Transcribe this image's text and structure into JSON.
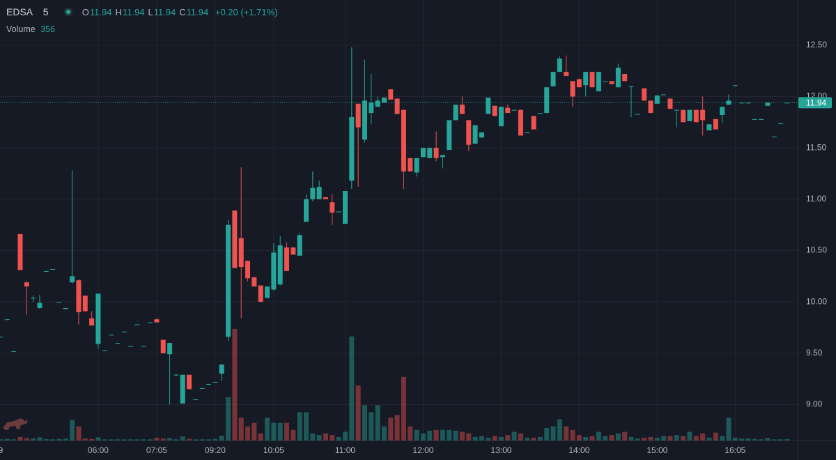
{
  "chart_data": {
    "type": "candlestick",
    "symbol": "EDSA",
    "interval": "5",
    "legend": [
      {
        "label": "O",
        "value": 11.94
      },
      {
        "label": "H",
        "value": 11.94
      },
      {
        "label": "L",
        "value": 11.94
      },
      {
        "label": "C",
        "value": 11.94
      }
    ],
    "change": "+0.20 (+1.71%)",
    "volume_label": "Volume",
    "volume_last": 356,
    "last_price": 11.94,
    "up_color": "#26a69a",
    "down_color": "#ef5350",
    "ylim": [
      8.65,
      12.94
    ],
    "yticks": [
      {
        "value": 9.0,
        "label": "9.00"
      },
      {
        "value": 9.5,
        "label": "9.50"
      },
      {
        "value": 10.0,
        "label": "10.00"
      },
      {
        "value": 10.5,
        "label": "10.50"
      },
      {
        "value": 11.0,
        "label": "11.00"
      },
      {
        "value": 11.5,
        "label": "11.50"
      },
      {
        "value": 12.0,
        "label": "12.00"
      },
      {
        "value": 12.5,
        "label": "12.50"
      }
    ],
    "grid": true,
    "categories": [
      "9",
      null,
      null,
      null,
      null,
      null,
      null,
      null,
      null,
      null,
      null,
      null,
      null,
      null,
      null,
      "06:00",
      null,
      null,
      null,
      null,
      null,
      null,
      null,
      null,
      "07:05",
      null,
      null,
      null,
      null,
      null,
      null,
      null,
      null,
      "09:20",
      null,
      null,
      null,
      null,
      null,
      null,
      null,
      null,
      "10:05",
      null,
      null,
      null,
      null,
      null,
      null,
      null,
      null,
      null,
      null,
      "11:00",
      null,
      null,
      null,
      null,
      null,
      null,
      null,
      null,
      null,
      null,
      null,
      "12:00",
      null,
      null,
      null,
      null,
      null,
      null,
      null,
      null,
      null,
      null,
      null,
      "13:00",
      null,
      null,
      null,
      null,
      null,
      null,
      null,
      null,
      null,
      null,
      null,
      "14:00",
      null,
      null,
      null,
      null,
      null,
      null,
      null,
      null,
      null,
      null,
      null,
      "15:00",
      null,
      null,
      null,
      null,
      null,
      null,
      null,
      null,
      null,
      null,
      null,
      "16:05",
      null,
      null,
      null,
      null,
      null,
      null,
      null,
      null
    ],
    "open": [
      9.66,
      9.83,
      9.52,
      10.66,
      10.19,
      10.04,
      9.94,
      10.3,
      10.32,
      10.0,
      9.93,
      10.19,
      10.21,
      10.06,
      9.84,
      9.59,
      9.53,
      9.68,
      9.6,
      9.71,
      9.57,
      9.78,
      9.57,
      9.8,
      9.83,
      9.63,
      9.49,
      9.29,
      9.01,
      9.29,
      9.05,
      9.16,
      9.2,
      9.22,
      9.3,
      9.66,
      10.89,
      10.62,
      10.4,
      10.24,
      10.16,
      10.04,
      10.12,
      10.17,
      10.53,
      10.53,
      10.45,
      10.78,
      11.0,
      11.0,
      11.02,
      10.97,
      10.88,
      10.76,
      11.18,
      11.93,
      11.58,
      11.84,
      11.9,
      11.94,
      12.07,
      11.98,
      11.87,
      11.4,
      11.26,
      11.41,
      11.4,
      11.5,
      11.41,
      11.48,
      11.77,
      11.92,
      11.77,
      11.54,
      11.6,
      11.83,
      11.91,
      11.71,
      11.89,
      11.87,
      11.87,
      11.65,
      11.81,
      11.84,
      11.84,
      12.1,
      12.24,
      12.24,
      12.15,
      12.17,
      12.11,
      12.24,
      12.05,
      12.15,
      12.15,
      12.09,
      12.22,
      12.1,
      11.83,
      12.08,
      11.96,
      11.93,
      12.02,
      11.98,
      11.87,
      11.87,
      11.76,
      11.87,
      11.87,
      11.67,
      11.78,
      11.82,
      11.92,
      12.11,
      11.94,
      11.94,
      11.78,
      11.78,
      11.91,
      11.61,
      11.74,
      11.94
    ],
    "high": [
      9.66,
      9.83,
      9.52,
      10.66,
      10.2,
      10.06,
      10.07,
      10.3,
      10.32,
      10.0,
      9.94,
      11.28,
      10.22,
      10.06,
      9.91,
      10.08,
      9.53,
      9.68,
      9.6,
      9.71,
      9.57,
      9.78,
      9.57,
      9.8,
      9.84,
      9.63,
      9.6,
      9.3,
      9.29,
      9.29,
      9.05,
      9.16,
      9.2,
      9.22,
      9.39,
      10.8,
      10.89,
      11.31,
      10.4,
      10.24,
      10.16,
      10.15,
      10.57,
      10.64,
      10.58,
      10.53,
      10.67,
      11.05,
      11.27,
      11.18,
      11.02,
      11.05,
      10.88,
      11.08,
      12.48,
      11.93,
      12.36,
      12.22,
      12.0,
      11.99,
      12.07,
      11.98,
      11.87,
      11.4,
      11.4,
      11.5,
      11.5,
      11.66,
      11.43,
      11.77,
      11.92,
      12.0,
      11.77,
      11.72,
      11.65,
      11.99,
      11.91,
      11.9,
      11.92,
      11.87,
      11.87,
      11.65,
      11.81,
      11.84,
      12.09,
      12.24,
      12.39,
      12.4,
      12.15,
      12.17,
      12.24,
      12.24,
      12.24,
      12.15,
      12.15,
      12.32,
      12.22,
      12.1,
      11.83,
      12.08,
      11.96,
      12.01,
      12.02,
      11.98,
      11.87,
      11.87,
      11.87,
      11.87,
      12.0,
      11.73,
      11.78,
      11.9,
      12.02,
      12.11,
      11.94,
      11.94,
      11.78,
      11.78,
      11.94,
      11.61,
      11.74,
      11.94
    ],
    "low": [
      9.66,
      9.83,
      9.52,
      10.31,
      9.87,
      10.0,
      9.93,
      10.3,
      10.32,
      10.0,
      9.93,
      10.18,
      9.78,
      9.9,
      9.77,
      9.54,
      9.53,
      9.68,
      9.6,
      9.71,
      9.57,
      9.78,
      9.57,
      9.8,
      9.8,
      9.5,
      9.0,
      9.28,
      9.01,
      9.15,
      9.05,
      9.16,
      9.2,
      9.22,
      9.23,
      9.62,
      10.33,
      9.84,
      10.2,
      10.15,
      10.0,
      10.03,
      10.11,
      10.16,
      10.3,
      10.46,
      10.45,
      10.78,
      10.98,
      11.0,
      11.0,
      10.75,
      10.88,
      10.76,
      11.1,
      11.12,
      11.55,
      11.73,
      11.9,
      11.94,
      11.97,
      11.83,
      11.1,
      11.27,
      11.22,
      11.41,
      11.4,
      11.37,
      11.3,
      11.48,
      11.77,
      11.83,
      11.47,
      11.54,
      11.6,
      11.83,
      11.81,
      11.71,
      11.84,
      11.87,
      11.62,
      11.65,
      11.68,
      11.84,
      11.84,
      12.1,
      12.24,
      12.2,
      11.9,
      12.09,
      12.0,
      12.09,
      12.05,
      12.15,
      12.12,
      12.09,
      12.15,
      11.8,
      11.83,
      11.96,
      11.84,
      11.93,
      12.02,
      11.88,
      11.7,
      11.75,
      11.76,
      11.75,
      11.62,
      11.67,
      11.68,
      11.74,
      11.92,
      12.11,
      11.94,
      11.94,
      11.78,
      11.78,
      11.91,
      11.61,
      11.74,
      11.94
    ],
    "close": [
      9.66,
      9.83,
      9.52,
      10.31,
      10.15,
      10.04,
      9.99,
      10.3,
      10.32,
      10.0,
      9.94,
      10.25,
      9.9,
      9.91,
      9.77,
      10.08,
      9.53,
      9.68,
      9.6,
      9.71,
      9.57,
      9.78,
      9.57,
      9.8,
      9.8,
      9.5,
      9.6,
      9.29,
      9.29,
      9.15,
      9.05,
      9.16,
      9.2,
      9.22,
      9.39,
      10.75,
      10.33,
      10.34,
      10.23,
      10.15,
      10.0,
      10.15,
      10.48,
      10.55,
      10.3,
      10.46,
      10.65,
      11.0,
      11.11,
      11.12,
      11.0,
      10.87,
      10.88,
      11.08,
      11.8,
      11.7,
      11.96,
      11.94,
      11.96,
      11.99,
      11.97,
      11.83,
      11.27,
      11.27,
      11.4,
      11.5,
      11.5,
      11.4,
      11.43,
      11.77,
      11.92,
      11.83,
      11.53,
      11.72,
      11.65,
      11.99,
      11.81,
      11.9,
      11.84,
      11.87,
      11.62,
      11.65,
      11.68,
      11.84,
      12.09,
      12.24,
      12.37,
      12.2,
      12.0,
      12.09,
      12.24,
      12.09,
      12.24,
      12.15,
      12.12,
      12.28,
      12.15,
      12.1,
      11.83,
      11.96,
      11.84,
      12.01,
      12.02,
      11.88,
      11.87,
      11.75,
      11.87,
      11.75,
      11.77,
      11.73,
      11.68,
      11.9,
      11.96,
      12.11,
      11.94,
      11.94,
      11.78,
      11.78,
      11.94,
      11.61,
      11.74,
      11.94
    ],
    "volume": [
      300,
      400,
      300,
      900,
      600,
      500,
      800,
      400,
      300,
      400,
      500,
      5200,
      3600,
      500,
      400,
      800,
      300,
      300,
      300,
      300,
      300,
      300,
      300,
      300,
      700,
      500,
      600,
      300,
      1000,
      400,
      300,
      300,
      300,
      400,
      1200,
      11000,
      28400,
      5800,
      3600,
      4500,
      1800,
      5800,
      4500,
      4500,
      4500,
      2700,
      7200,
      7200,
      1800,
      1400,
      1800,
      1400,
      900,
      2200,
      26500,
      14000,
      9000,
      7200,
      9000,
      3600,
      5800,
      6500,
      16200,
      3600,
      2700,
      1800,
      2500,
      2700,
      2700,
      2700,
      2500,
      2200,
      1800,
      900,
      1100,
      700,
      1100,
      900,
      1400,
      2200,
      1800,
      700,
      700,
      900,
      3200,
      3600,
      5400,
      3600,
      2700,
      1400,
      900,
      1100,
      2200,
      1100,
      1400,
      1800,
      2200,
      900,
      500,
      700,
      900,
      700,
      1100,
      1100,
      1400,
      1100,
      2200,
      1100,
      1800,
      700,
      2000,
      1100,
      5800,
      700,
      500,
      500,
      400,
      300,
      600,
      300,
      300,
      356
    ]
  }
}
